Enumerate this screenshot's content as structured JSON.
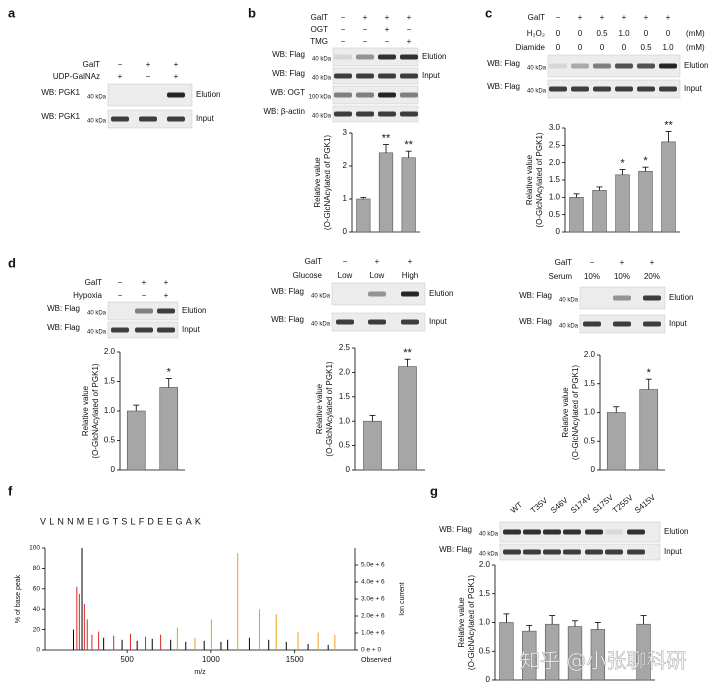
{
  "panels": [
    {
      "letter": "a",
      "header": [
        {
          "label": "GalT",
          "cells": [
            "−",
            "+",
            "+"
          ]
        },
        {
          "label": "UDP-GalNAz",
          "cells": [
            "+",
            "−",
            "+"
          ]
        }
      ],
      "blots": [
        {
          "label": "WB: PGK1",
          "kda": "40 kDa",
          "side": "Elution"
        },
        {
          "label": "WB: PGK1",
          "kda": "40 kDa",
          "side": "Input"
        }
      ]
    },
    {
      "letter": "b",
      "header": [
        {
          "label": "GalT",
          "cells": [
            "−",
            "+",
            "+",
            "+"
          ]
        },
        {
          "label": "OGT",
          "cells": [
            "−",
            "−",
            "+",
            "−"
          ]
        },
        {
          "label": "TMG",
          "cells": [
            "−",
            "−",
            "−",
            "+"
          ]
        }
      ],
      "blots": [
        {
          "label": "WB: Flag",
          "kda": "40 kDa",
          "side": "Elution"
        },
        {
          "label": "WB: Flag",
          "kda": "40 kDa",
          "side": "Input"
        },
        {
          "label": "WB: OGT",
          "kda": "100 kDa"
        },
        {
          "label": "WB: β-actin",
          "kda": "40 kDa"
        }
      ]
    },
    {
      "letter": "c",
      "header": [
        {
          "label": "GalT",
          "cells": [
            "−",
            "+",
            "+",
            "+",
            "+",
            "+"
          ]
        },
        {
          "label": "H₂O₂",
          "cells": [
            "0",
            "0",
            "0.5",
            "1.0",
            "0",
            "0"
          ],
          "unit": "(mM)"
        },
        {
          "label": "Diamide",
          "cells": [
            "0",
            "0",
            "0",
            "0",
            "0.5",
            "1.0"
          ],
          "unit": "(mM)"
        }
      ],
      "blots": [
        {
          "label": "WB: Flag",
          "kda": "40 kDa",
          "side": "Elution"
        },
        {
          "label": "WB: Flag",
          "kda": "40 kDa",
          "side": "Input"
        }
      ]
    },
    {
      "letter": "d",
      "header": [
        {
          "label": "GalT",
          "cells": [
            "−",
            "+",
            "+"
          ]
        },
        {
          "label": "Hypoxia",
          "cells": [
            "−",
            "−",
            "+"
          ]
        }
      ],
      "blots": [
        {
          "label": "WB: Flag",
          "kda": "40 kDa",
          "side": "Elution"
        },
        {
          "label": "WB: Flag",
          "kda": "40 kDa",
          "side": "Input"
        }
      ]
    },
    {
      "header": [
        {
          "label": "GalT",
          "cells": [
            "−",
            "+",
            "+"
          ]
        },
        {
          "label": "Glucose",
          "cells": [
            "Low",
            "Low",
            "High"
          ]
        }
      ],
      "blots": [
        {
          "label": "WB: Flag",
          "kda": "40 kDa",
          "side": "Elution"
        },
        {
          "label": "WB: Flag",
          "kda": "40 kDa",
          "side": "Input"
        }
      ]
    },
    {
      "header": [
        {
          "label": "GalT",
          "cells": [
            "−",
            "+",
            "+"
          ]
        },
        {
          "label": "Serum",
          "cells": [
            "10%",
            "10%",
            "20%"
          ]
        }
      ],
      "blots": [
        {
          "label": "WB: Flag",
          "kda": "40 kDa",
          "side": "Elution"
        },
        {
          "label": "WB: Flag",
          "kda": "40 kDa",
          "side": "Input"
        }
      ]
    },
    {
      "letter": "f",
      "sequence": "VLNNMEIGTSLFDEEGAK"
    },
    {
      "letter": "g",
      "lanes": [
        "WT",
        "T35V",
        "S46V",
        "S174V",
        "S175V",
        "T255V",
        "S415V"
      ],
      "blots": [
        {
          "label": "WB: Flag",
          "kda": "40 kDa",
          "side": "Elution"
        },
        {
          "label": "WB: Flag",
          "kda": "40 kDa",
          "side": "Input"
        }
      ]
    }
  ],
  "chart_data": [
    {
      "type": "bar",
      "categories": [
        null,
        null,
        null
      ],
      "values": [
        1.0,
        2.4,
        2.25
      ],
      "errors": [
        0.05,
        0.25,
        0.2
      ],
      "significance": [
        null,
        "**",
        "**"
      ],
      "ylabel": [
        "Relative value",
        "(O-GlcNAcylated of PGK1)"
      ],
      "ylim": [
        0,
        3
      ],
      "yticks": [
        0,
        1,
        2,
        3
      ],
      "color": "#a6a6a6"
    },
    {
      "type": "bar",
      "categories": [
        null,
        null,
        null,
        null,
        null
      ],
      "values": [
        1.0,
        1.2,
        1.65,
        1.75,
        2.6
      ],
      "errors": [
        0.1,
        0.1,
        0.15,
        0.12,
        0.3
      ],
      "significance": [
        null,
        null,
        "*",
        "*",
        "**"
      ],
      "ylabel": [
        "Relative value",
        "(O-GlcNAcylated of PGK1)"
      ],
      "ylim": [
        0,
        3
      ],
      "yticks": [
        0,
        0.5,
        {
          "value": 1,
          "label": "1.0"
        },
        1.5,
        {
          "value": 2,
          "label": "2.0"
        },
        2.5,
        {
          "value": 3,
          "label": "3.0"
        }
      ],
      "color": "#a6a6a6"
    },
    {
      "type": "bar",
      "categories": [
        null,
        null
      ],
      "values": [
        1.0,
        1.4
      ],
      "errors": [
        0.1,
        0.15
      ],
      "significance": [
        null,
        "*"
      ],
      "ylabel": [
        "Relative value",
        "(O-GlcNAcylated of PGK1)"
      ],
      "ylim": [
        0,
        2
      ],
      "yticks": [
        0,
        0.5,
        {
          "value": 1,
          "label": "1.0"
        },
        1.5,
        {
          "value": 2,
          "label": "2.0"
        }
      ],
      "color": "#a6a6a6"
    },
    {
      "type": "bar",
      "categories": [
        null,
        null
      ],
      "values": [
        1.0,
        2.12
      ],
      "errors": [
        0.12,
        0.15
      ],
      "significance": [
        null,
        "**"
      ],
      "ylabel": [
        "Relative value",
        "(O-GlcNAcylated of PGK1)"
      ],
      "ylim": [
        0,
        2.5
      ],
      "yticks": [
        0,
        0.5,
        {
          "value": 1,
          "label": "1.0"
        },
        1.5,
        {
          "value": 2,
          "label": "2.0"
        },
        2.5
      ],
      "color": "#a6a6a6"
    },
    {
      "type": "bar",
      "categories": [
        null,
        null
      ],
      "values": [
        1.0,
        1.4
      ],
      "errors": [
        0.1,
        0.18
      ],
      "significance": [
        null,
        "*"
      ],
      "ylabel": [
        "Relative value",
        "(O-GlcNAcylated of PGK1)"
      ],
      "ylim": [
        0,
        2
      ],
      "yticks": [
        0,
        0.5,
        {
          "value": 1,
          "label": "1.0"
        },
        1.5,
        {
          "value": 2,
          "label": "2.0"
        }
      ],
      "color": "#a6a6a6"
    },
    {
      "type": "bar",
      "categories": [
        null,
        null,
        null,
        null,
        null,
        null,
        null
      ],
      "values": [
        1.0,
        0.85,
        0.97,
        0.93,
        0.88,
        null,
        0.97
      ],
      "errors": [
        0.15,
        0.1,
        0.15,
        0.1,
        0.12,
        null,
        0.15
      ],
      "significance": [
        null,
        null,
        null,
        null,
        null,
        null,
        null
      ],
      "ylabel": [
        "Relative value",
        "(O-GlcNAcylated of PGK1)"
      ],
      "ylim": [
        0,
        2
      ],
      "yticks": [
        0,
        0.5,
        {
          "value": 1,
          "label": "1.0"
        },
        1.5,
        {
          "value": 2,
          "label": "2.0"
        }
      ],
      "color": "#a6a6a6"
    },
    {
      "type": "spectrum",
      "xlabel": "m/z",
      "ylabel": "% of base peak",
      "y2label": "Ion current",
      "y2note": "Observed",
      "x": [
        180,
        200,
        215,
        231,
        245,
        262,
        290,
        330,
        360,
        420,
        470,
        520,
        560,
        610,
        650,
        700,
        760,
        800,
        850,
        905,
        960,
        1003,
        1060,
        1100,
        1160,
        1230,
        1290,
        1345,
        1390,
        1450,
        1520,
        1580,
        1640,
        1700,
        1740
      ],
      "values": [
        20,
        62,
        55,
        100,
        45,
        30,
        15,
        18,
        12,
        14,
        10,
        16,
        9,
        13,
        11,
        15,
        10,
        22,
        8,
        12,
        9,
        30,
        8,
        10,
        95,
        12,
        40,
        10,
        35,
        8,
        18,
        6,
        17,
        5,
        15
      ],
      "peak_colors": [
        "#000000",
        "#d62728",
        "#d62728",
        "#000000",
        "#d62728",
        "#d62728",
        "#d62728",
        "#d62728",
        "#000000",
        "#d62728",
        "#000000",
        "#d62728",
        "#000000",
        "#d62728",
        "#000000",
        "#d62728",
        "#000000",
        "#e8a317",
        "#000000",
        "#e8a317",
        "#000000",
        "#e8a317",
        "#000000",
        "#000000",
        "#e8a317",
        "#000000",
        "#e8a317",
        "#000000",
        "#e8a317",
        "#000000",
        "#e8a317",
        "#000000",
        "#e8a317",
        "#000000",
        "#e8a317"
      ],
      "xlim": [
        10,
        1860
      ],
      "xticks": [
        500,
        1000,
        1500
      ],
      "ylim": [
        0,
        100
      ],
      "yticks": [
        0,
        20,
        40,
        60,
        80,
        100
      ],
      "y2lim": [
        0,
        6000000
      ],
      "y2ticks": [
        {
          "value": 0,
          "label": "0 e + 0"
        },
        {
          "value": 1000000,
          "label": "1.0e + 6"
        },
        {
          "value": 2000000,
          "label": "2.0e + 6"
        },
        {
          "value": 3000000,
          "label": "3.0e + 6"
        },
        {
          "value": 4000000,
          "label": "4.0e + 6"
        },
        {
          "value": 5000000,
          "label": "5.0e + 6"
        }
      ]
    }
  ],
  "watermark": "知乎 @小张聊科研"
}
